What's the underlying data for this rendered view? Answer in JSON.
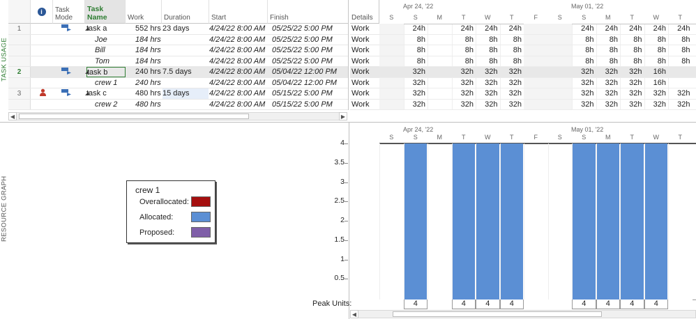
{
  "side_labels": {
    "top": "TASK USAGE",
    "bottom": "RESOURCE GRAPH"
  },
  "table": {
    "headers": {
      "task_mode": "Task Mode",
      "task_name": "Task Name",
      "work": "Work",
      "duration": "Duration",
      "start": "Start",
      "finish": "Finish",
      "details": "Details"
    },
    "rows": [
      {
        "num": "1",
        "name": "task a",
        "work": "552 hrs",
        "duration": "23 days",
        "start": "4/24/22 8:00 AM",
        "finish": "05/25/22 5:00 PM",
        "detail": "Work",
        "values": [
          "24h",
          "24h",
          "24h",
          "24h",
          "24h",
          "24h",
          "24h",
          "24h",
          "24h"
        ]
      },
      {
        "num": "",
        "name": "Joe",
        "work": "184 hrs",
        "duration": "",
        "start": "4/24/22 8:00 AM",
        "finish": "05/25/22 5:00 PM",
        "detail": "Work",
        "values": [
          "8h",
          "8h",
          "8h",
          "8h",
          "8h",
          "8h",
          "8h",
          "8h",
          "8h"
        ]
      },
      {
        "num": "",
        "name": "Bill",
        "work": "184 hrs",
        "duration": "",
        "start": "4/24/22 8:00 AM",
        "finish": "05/25/22 5:00 PM",
        "detail": "Work",
        "values": [
          "8h",
          "8h",
          "8h",
          "8h",
          "8h",
          "8h",
          "8h",
          "8h",
          "8h"
        ]
      },
      {
        "num": "",
        "name": "Tom",
        "work": "184 hrs",
        "duration": "",
        "start": "4/24/22 8:00 AM",
        "finish": "05/25/22 5:00 PM",
        "detail": "Work",
        "values": [
          "8h",
          "8h",
          "8h",
          "8h",
          "8h",
          "8h",
          "8h",
          "8h",
          "8h"
        ]
      },
      {
        "num": "2",
        "name": "task b",
        "work": "240 hrs",
        "duration": "7.5 days",
        "start": "4/24/22 8:00 AM",
        "finish": "05/04/22 12:00 PM",
        "detail": "Work",
        "values": [
          "32h",
          "32h",
          "32h",
          "32h",
          "32h",
          "32h",
          "32h",
          "16h",
          ""
        ]
      },
      {
        "num": "",
        "name": "crew 1",
        "work": "240 hrs",
        "duration": "",
        "start": "4/24/22 8:00 AM",
        "finish": "05/04/22 12:00 PM",
        "detail": "Work",
        "values": [
          "32h",
          "32h",
          "32h",
          "32h",
          "32h",
          "32h",
          "32h",
          "16h",
          ""
        ]
      },
      {
        "num": "3",
        "name": "task c",
        "work": "480 hrs",
        "duration": "15 days",
        "start": "4/24/22 8:00 AM",
        "finish": "05/15/22 5:00 PM",
        "detail": "Work",
        "values": [
          "32h",
          "32h",
          "32h",
          "32h",
          "32h",
          "32h",
          "32h",
          "32h",
          "32h"
        ]
      },
      {
        "num": "",
        "name": "crew 2",
        "work": "480 hrs",
        "duration": "",
        "start": "4/24/22 8:00 AM",
        "finish": "05/15/22 5:00 PM",
        "detail": "Work",
        "values": [
          "32h",
          "32h",
          "32h",
          "32h",
          "32h",
          "32h",
          "32h",
          "32h",
          "32h"
        ]
      }
    ]
  },
  "timescale": {
    "week1": "Apr 24, '22",
    "week2": "May 01, '22",
    "days": [
      "S",
      "S",
      "M",
      "T",
      "W",
      "T",
      "F",
      "S",
      "S",
      "M",
      "T",
      "W",
      "T"
    ]
  },
  "legend": {
    "title": "crew 1",
    "items": [
      {
        "label": "Overallocated:",
        "color": "#a50f0f"
      },
      {
        "label": "Allocated:",
        "color": "#5b8fd4"
      },
      {
        "label": "Proposed:",
        "color": "#7f5fa8"
      }
    ]
  },
  "chart_data": {
    "type": "bar",
    "categories": [
      "S",
      "S",
      "M",
      "T",
      "W",
      "T",
      "F",
      "S",
      "S",
      "M",
      "T",
      "W",
      "T"
    ],
    "values": [
      0,
      4,
      0,
      4,
      4,
      4,
      0,
      0,
      4,
      4,
      4,
      4,
      0
    ],
    "ylim": [
      0,
      4
    ],
    "yticks": [
      "4",
      "3.5",
      "3",
      "2.5",
      "2",
      "1.5",
      "1",
      "0.5"
    ],
    "peak_label": "Peak Units:",
    "peak_values": [
      "",
      "4",
      "",
      "4",
      "4",
      "4",
      "",
      "",
      "4",
      "4",
      "4",
      "4",
      ""
    ]
  }
}
